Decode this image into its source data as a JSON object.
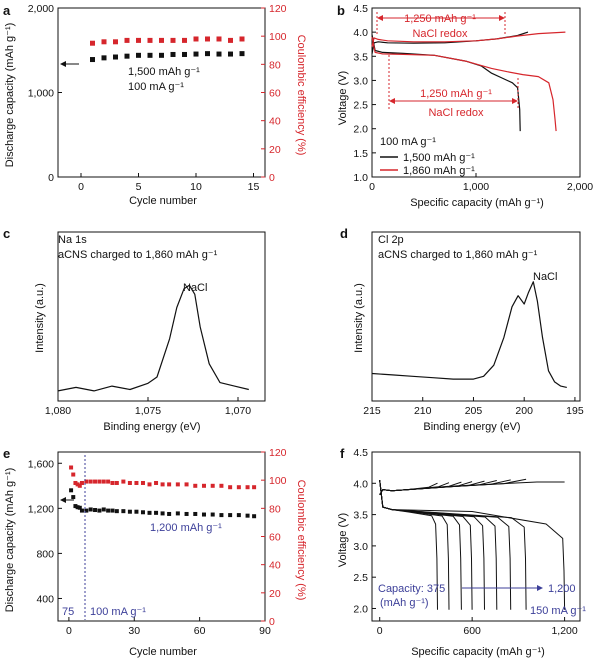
{
  "colors": {
    "black": "#111111",
    "red": "#d6262c",
    "blue": "#3c3f99",
    "gray": "#777777"
  },
  "chart_data": [
    {
      "id": "a",
      "type": "scatter",
      "letter": "a",
      "xlabel": "Cycle number",
      "ylabel": "Discharge capacity (mAh g⁻¹)",
      "y2label": "Coulombic efficiency (%)",
      "xlim": [
        -2,
        16
      ],
      "ylim": [
        0,
        2000
      ],
      "y2lim": [
        0,
        120
      ],
      "xticks": [
        0,
        5,
        10,
        15
      ],
      "yticks": [
        0,
        1000,
        2000
      ],
      "y2ticks": [
        0,
        20,
        40,
        60,
        80,
        100,
        120
      ],
      "xtick_labels": [
        "0",
        "5",
        "10",
        "15"
      ],
      "ytick_labels": [
        "0",
        "1,000",
        "2,000"
      ],
      "y2tick_labels": [
        "0",
        "20",
        "40",
        "60",
        "80",
        "100",
        "120"
      ],
      "series": [
        {
          "name": "Discharge capacity",
          "axis": "left",
          "color": "#111111",
          "marker": "square",
          "x": [
            1,
            2,
            3,
            4,
            5,
            6,
            7,
            8,
            9,
            10,
            11,
            12,
            13,
            14
          ],
          "y": [
            1390,
            1410,
            1420,
            1430,
            1440,
            1440,
            1440,
            1450,
            1450,
            1455,
            1460,
            1455,
            1455,
            1460
          ]
        },
        {
          "name": "Coulombic efficiency",
          "axis": "right",
          "color": "#d6262c",
          "marker": "square",
          "x": [
            1,
            2,
            3,
            4,
            5,
            6,
            7,
            8,
            9,
            10,
            11,
            12,
            13,
            14
          ],
          "y": [
            95,
            96,
            96,
            97,
            97,
            97,
            97,
            97,
            97,
            98,
            98,
            98,
            97,
            98
          ]
        }
      ],
      "annotations": [
        "1,500 mAh g⁻¹",
        "100 mA g⁻¹"
      ]
    },
    {
      "id": "b",
      "type": "line",
      "letter": "b",
      "xlabel": "Specific capacity (mAh g⁻¹)",
      "ylabel": "Voltage (V)",
      "xlim": [
        0,
        2000
      ],
      "ylim": [
        1.0,
        4.5
      ],
      "xticks": [
        0,
        1000,
        2000
      ],
      "yticks": [
        1.0,
        1.5,
        2.0,
        2.5,
        3.0,
        3.5,
        4.0,
        4.5
      ],
      "xtick_labels": [
        "0",
        "1,000",
        "2,000"
      ],
      "ytick_labels": [
        "1.0",
        "1.5",
        "2.0",
        "2.5",
        "3.0",
        "3.5",
        "4.0",
        "4.5"
      ],
      "series": [
        {
          "name": "1,500 mAh g⁻¹ charge",
          "color": "#111111",
          "x": [
            0,
            20,
            60,
            150,
            400,
            700,
            1000,
            1200,
            1400,
            1500
          ],
          "y": [
            3.55,
            3.78,
            3.8,
            3.78,
            3.77,
            3.78,
            3.82,
            3.86,
            3.93,
            4.0
          ]
        },
        {
          "name": "1,500 mAh g⁻¹ discharge",
          "color": "#111111",
          "x": [
            0,
            30,
            100,
            300,
            600,
            900,
            1050,
            1150,
            1250,
            1350,
            1400,
            1420,
            1425
          ],
          "y": [
            3.95,
            3.62,
            3.58,
            3.56,
            3.52,
            3.4,
            3.3,
            3.15,
            3.05,
            2.95,
            2.85,
            2.4,
            1.95
          ]
        },
        {
          "name": "1,860 mAh g⁻¹ charge",
          "color": "#d6262c",
          "x": [
            0,
            20,
            60,
            150,
            400,
            700,
            1000,
            1200,
            1400,
            1600,
            1860
          ],
          "y": [
            3.7,
            3.88,
            3.85,
            3.82,
            3.8,
            3.8,
            3.82,
            3.86,
            3.92,
            3.97,
            4.0
          ]
        },
        {
          "name": "1,860 mAh g⁻¹ discharge",
          "color": "#d6262c",
          "x": [
            0,
            30,
            100,
            300,
            600,
            900,
            1150,
            1300,
            1450,
            1600,
            1700,
            1740,
            1760,
            1770
          ],
          "y": [
            3.9,
            3.58,
            3.55,
            3.54,
            3.52,
            3.4,
            3.25,
            3.18,
            3.12,
            3.08,
            2.95,
            2.6,
            2.2,
            1.95
          ]
        }
      ],
      "annotations": {
        "top_arrow": "1,250 mAh g⁻¹",
        "top_sub": "NaCl redox",
        "mid_arrow": "1,250 mAh g⁻¹",
        "mid_sub": "NaCl redox",
        "legend_title": "100 mA g⁻¹",
        "legend_1": "1,500 mAh g⁻¹",
        "legend_2": "1,860 mAh g⁻¹"
      }
    },
    {
      "id": "c",
      "type": "line",
      "letter": "c",
      "xlabel": "Binding energy (eV)",
      "ylabel": "Intensity (a.u.)",
      "xlim": [
        1080,
        1068.5
      ],
      "reversed_x": true,
      "xticks": [
        1080,
        1075,
        1070
      ],
      "xtick_labels": [
        "1,080",
        "1,075",
        "1,070"
      ],
      "series": [
        {
          "name": "Na 1s",
          "color": "#111111",
          "x": [
            1080,
            1079,
            1078,
            1077,
            1076,
            1075,
            1074.5,
            1073.8,
            1073.4,
            1073.0,
            1072.7,
            1072.4,
            1072.1,
            1071.6,
            1071,
            1070.2,
            1069.4
          ],
          "y": [
            0.02,
            0.03,
            0.02,
            0.04,
            0.03,
            0.06,
            0.12,
            0.38,
            0.62,
            0.74,
            0.78,
            0.7,
            0.48,
            0.2,
            0.08,
            0.04,
            0.03
          ]
        }
      ],
      "annotations": {
        "title": "Na 1s",
        "subtitle": "aCNS charged to 1,860 mAh g⁻¹",
        "peak": "NaCl"
      }
    },
    {
      "id": "d",
      "type": "line",
      "letter": "d",
      "xlabel": "Binding energy (eV)",
      "ylabel": "Intensity (a.u.)",
      "xlim": [
        215,
        194.5
      ],
      "reversed_x": true,
      "xticks": [
        215,
        210,
        205,
        200,
        195
      ],
      "xtick_labels": [
        "215",
        "210",
        "205",
        "200",
        "195"
      ],
      "series": [
        {
          "name": "Cl 2p",
          "color": "#111111",
          "x": [
            215,
            213,
            211,
            209,
            207,
            205,
            204,
            203,
            202,
            201.2,
            200.6,
            200.0,
            199.6,
            199.1,
            198.7,
            198.2,
            197.6,
            197,
            196.4,
            195.8
          ],
          "y": [
            0.14,
            0.13,
            0.12,
            0.11,
            0.1,
            0.1,
            0.12,
            0.2,
            0.4,
            0.62,
            0.7,
            0.64,
            0.72,
            0.8,
            0.66,
            0.4,
            0.16,
            0.08,
            0.05,
            0.04
          ]
        }
      ],
      "annotations": {
        "title": "Cl 2p",
        "subtitle": "aCNS charged to 1,860 mAh g⁻¹",
        "peak": "NaCl"
      }
    },
    {
      "id": "e",
      "type": "scatter",
      "letter": "e",
      "xlabel": "Cycle number",
      "ylabel": "Discharge capacity (mAh g⁻¹)",
      "y2label": "Coulombic efficiency (%)",
      "xlim": [
        -5,
        90
      ],
      "ylim": [
        200,
        1700
      ],
      "y2lim": [
        0,
        120
      ],
      "xticks": [
        0,
        30,
        60,
        90
      ],
      "yticks": [
        400,
        800,
        1200,
        1600
      ],
      "y2ticks": [
        0,
        20,
        40,
        60,
        80,
        100,
        120
      ],
      "xtick_labels": [
        "0",
        "30",
        "60",
        "90"
      ],
      "ytick_labels": [
        "400",
        "800",
        "1,200",
        "1,600"
      ],
      "y2tick_labels": [
        "0",
        "20",
        "40",
        "60",
        "80",
        "100",
        "120"
      ],
      "series": [
        {
          "name": "Discharge capacity",
          "axis": "left",
          "color": "#111111",
          "marker": "square",
          "x": [
            1,
            2,
            3,
            4,
            5,
            6,
            8,
            10,
            12,
            14,
            16,
            18,
            20,
            22,
            25,
            28,
            31,
            34,
            37,
            40,
            43,
            46,
            50,
            54,
            58,
            62,
            66,
            70,
            74,
            78,
            82,
            85
          ],
          "y": [
            1360,
            1300,
            1220,
            1210,
            1205,
            1180,
            1180,
            1190,
            1185,
            1180,
            1190,
            1180,
            1180,
            1175,
            1175,
            1170,
            1170,
            1165,
            1160,
            1160,
            1155,
            1150,
            1155,
            1150,
            1150,
            1145,
            1145,
            1140,
            1140,
            1140,
            1135,
            1130
          ]
        },
        {
          "name": "Coulombic efficiency",
          "axis": "right",
          "color": "#d6262c",
          "marker": "square",
          "x": [
            1,
            2,
            3,
            4,
            5,
            6,
            8,
            10,
            12,
            14,
            16,
            18,
            20,
            22,
            25,
            28,
            31,
            34,
            37,
            40,
            43,
            46,
            50,
            54,
            58,
            62,
            66,
            70,
            74,
            78,
            82,
            85
          ],
          "y": [
            109,
            104,
            98,
            97,
            96,
            98,
            99,
            99,
            99,
            99,
            99,
            99,
            98,
            98,
            99,
            98,
            98,
            98,
            97,
            98,
            97,
            97,
            97,
            97,
            96,
            96,
            96,
            96,
            95,
            95,
            95,
            95
          ]
        }
      ],
      "annotations": {
        "capacity": "1,200 mAh g⁻¹",
        "left_rate": "75",
        "right_rate": "100 mA g⁻¹"
      }
    },
    {
      "id": "f",
      "type": "line",
      "letter": "f",
      "xlabel": "Specific capacity (mAh g⁻¹)",
      "ylabel": "Voltage (V)",
      "xlim": [
        -50,
        1300
      ],
      "ylim": [
        1.8,
        4.5
      ],
      "xticks": [
        0,
        600,
        1200
      ],
      "yticks": [
        2.0,
        2.5,
        3.0,
        3.5,
        4.0,
        4.5
      ],
      "xtick_labels": [
        "0",
        "600",
        "1,200"
      ],
      "ytick_labels": [
        "2.0",
        "2.5",
        "3.0",
        "3.5",
        "4.0",
        "4.5"
      ],
      "capacities": [
        375,
        450,
        530,
        600,
        680,
        760,
        850,
        950,
        1200
      ],
      "annotations": {
        "capacity_label": "Capacity: 375",
        "capacity_unit": "(mAh g⁻¹)",
        "capacity_end": "1,200",
        "rate": "150 mA g⁻¹"
      }
    }
  ]
}
